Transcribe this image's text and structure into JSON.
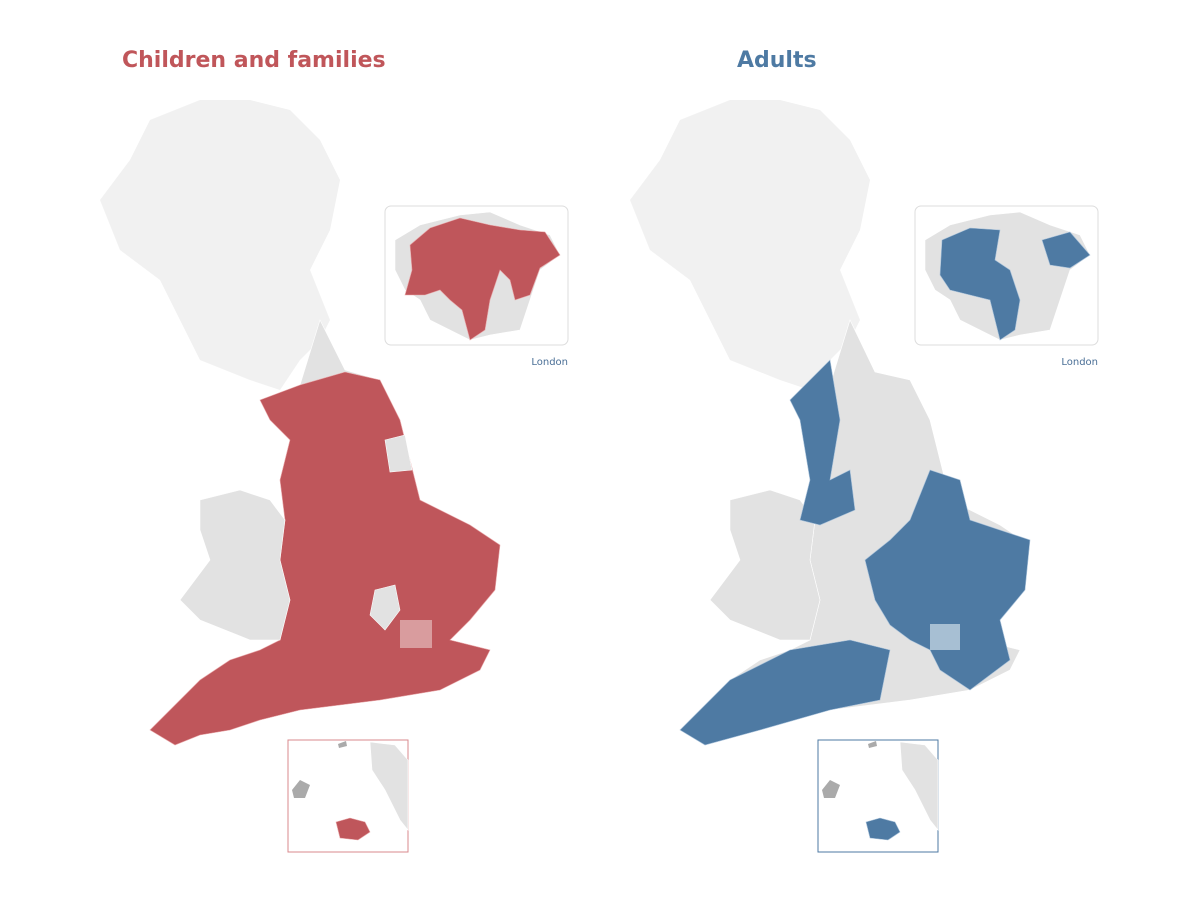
{
  "maps": [
    {
      "title": "Children and families",
      "inset_label": "London"
    },
    {
      "title": "Adults",
      "inset_label": "London"
    }
  ]
}
